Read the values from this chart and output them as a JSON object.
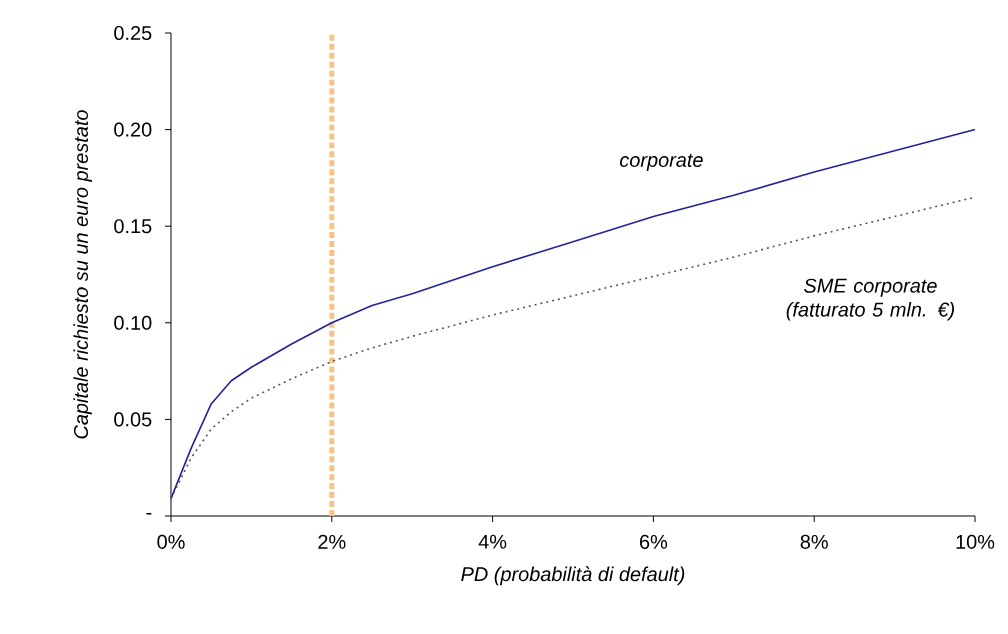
{
  "chart_data": {
    "type": "line",
    "xlabel": "PD (probabilità di default)",
    "ylabel": "Capitale richiesto su un euro prestato",
    "x": [
      0,
      0.25,
      0.5,
      0.75,
      1,
      1.5,
      2,
      2.5,
      3,
      4,
      5,
      6,
      7,
      8,
      9,
      10
    ],
    "series": [
      {
        "name": "corporate",
        "color": "#22229a",
        "line_style": "solid",
        "values": [
          0.009,
          0.035,
          0.058,
          0.07,
          0.077,
          0.089,
          0.1,
          0.109,
          0.115,
          0.129,
          0.142,
          0.155,
          0.166,
          0.178,
          0.189,
          0.2
        ]
      },
      {
        "name": "SME corporate (fatturato 5 mln. €)",
        "color": "#555555",
        "line_style": "dotted",
        "values": [
          0.009,
          0.03,
          0.045,
          0.054,
          0.061,
          0.071,
          0.08,
          0.087,
          0.093,
          0.104,
          0.114,
          0.124,
          0.134,
          0.145,
          0.155,
          0.165
        ]
      }
    ],
    "xlim": [
      0,
      10
    ],
    "ylim": [
      0,
      0.25
    ],
    "xticks": [
      {
        "value": 0,
        "label": "0%"
      },
      {
        "value": 2,
        "label": "2%"
      },
      {
        "value": 4,
        "label": "4%"
      },
      {
        "value": 6,
        "label": "6%"
      },
      {
        "value": 8,
        "label": "8%"
      },
      {
        "value": 10,
        "label": "10%"
      }
    ],
    "yticks": [
      {
        "value": 0,
        "label": "-"
      },
      {
        "value": 0.05,
        "label": "0.05"
      },
      {
        "value": 0.1,
        "label": "0.10"
      },
      {
        "value": 0.15,
        "label": "0.15"
      },
      {
        "value": 0.2,
        "label": "0.20"
      },
      {
        "value": 0.25,
        "label": "0.25"
      }
    ],
    "ref_lines": [
      {
        "axis": "x",
        "value": 2,
        "color": "#f9c384",
        "line_style": "dashed"
      }
    ],
    "grid": false,
    "legend": false,
    "marker": "none"
  }
}
